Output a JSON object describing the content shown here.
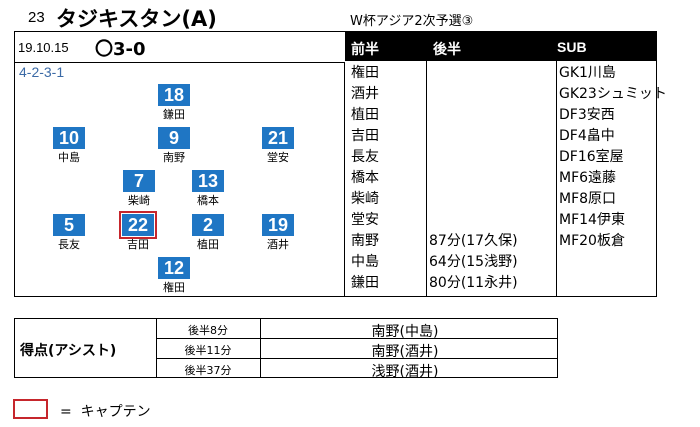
{
  "header": {
    "match_no": "23",
    "opponent": "タジキスタン(A)",
    "competition": "W杯アジア2次予選③",
    "date": "19.10.15",
    "result": "〇3-0"
  },
  "formation": "4-2-3-1",
  "table_headers": {
    "first_half": "前半",
    "second_half": "後半",
    "sub": "SUB"
  },
  "pitch_players": [
    {
      "number": "18",
      "name": "鎌田"
    },
    {
      "number": "10",
      "name": "中島"
    },
    {
      "number": "9",
      "name": "南野"
    },
    {
      "number": "21",
      "name": "堂安"
    },
    {
      "number": "7",
      "name": "柴崎"
    },
    {
      "number": "13",
      "name": "橋本"
    },
    {
      "number": "5",
      "name": "長友"
    },
    {
      "number": "22",
      "name": "吉田",
      "captain": true
    },
    {
      "number": "2",
      "name": "植田"
    },
    {
      "number": "19",
      "name": "酒井"
    },
    {
      "number": "12",
      "name": "権田"
    }
  ],
  "first_half": [
    "権田",
    "酒井",
    "植田",
    "吉田",
    "長友",
    "橋本",
    "柴崎",
    "堂安",
    "南野",
    "中島",
    "鎌田"
  ],
  "second_half": [
    "",
    "",
    "",
    "",
    "",
    "",
    "",
    "",
    "87分(17久保)",
    "64分(15浅野)",
    "80分(11永井)"
  ],
  "subs": [
    "GK1川島",
    "GK23シュミット",
    "DF3安西",
    "DF4畠中",
    "DF16室屋",
    "MF6遠藤",
    "MF8原口",
    "MF14伊東",
    "MF20板倉"
  ],
  "goals": {
    "label": "得点(アシスト)",
    "rows": [
      {
        "time": "後半8分",
        "scorer": "南野(中島)"
      },
      {
        "time": "後半11分",
        "scorer": "南野(酒井)"
      },
      {
        "time": "後半37分",
        "scorer": "浅野(酒井)"
      }
    ]
  },
  "legend": {
    "text": "=  キャプテン"
  },
  "colors": {
    "badge": "#1f76c4",
    "captain_border": "#c6262c",
    "header_bar": "#000000",
    "formation_text": "#3b6aa6"
  }
}
